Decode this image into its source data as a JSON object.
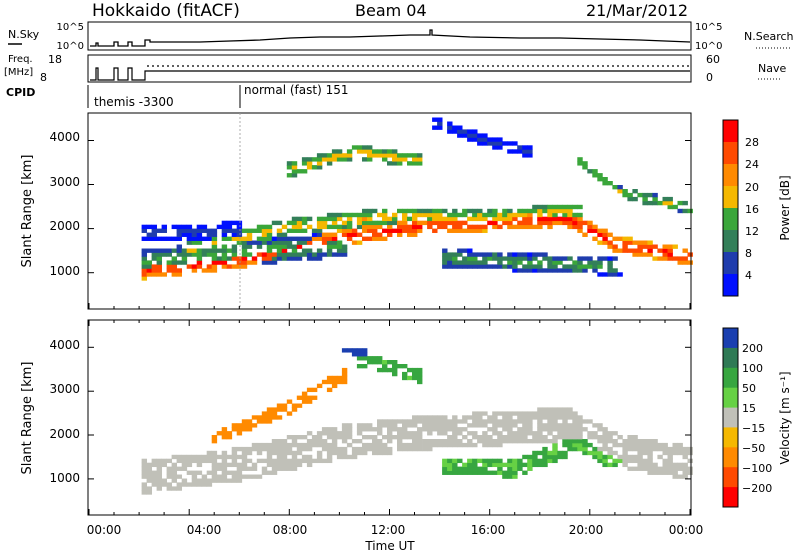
{
  "header": {
    "station": "Hokkaido (fitACF)",
    "beam": "Beam 04",
    "date": "21/Mar/2012"
  },
  "top_panels": {
    "nsky_label": "N.Sky",
    "nsky_ticks": [
      "10^5",
      "10^0"
    ],
    "nsearch_label": "N.Search",
    "nsearch_ticks": [
      "10^5",
      "10^0"
    ],
    "freq_label_1": "Freq.",
    "freq_label_2": "[MHz]",
    "freq_ticks": [
      "18",
      "8"
    ],
    "nave_label": "Nave",
    "nave_ticks": [
      "60",
      "0"
    ],
    "cpid_label": "CPID",
    "cpid_segments": [
      {
        "name": "themis -3300",
        "start_hour": 0.0,
        "end_hour": 6.0
      },
      {
        "name": "normal (fast) 151",
        "start_hour": 6.0,
        "end_hour": 24.0
      }
    ]
  },
  "power_colorbar": {
    "label": "Power [dB]",
    "ticks": [
      "28",
      "24",
      "20",
      "16",
      "12",
      "8",
      "4"
    ],
    "colors": [
      "#ff0000",
      "#ff4a00",
      "#ff8a00",
      "#f5b800",
      "#3aa63a",
      "#337f59",
      "#1f3cad",
      "#0010ff"
    ]
  },
  "velocity_colorbar": {
    "label": "Velocity [m s⁻¹]",
    "ticks": [
      "200",
      "100",
      "50",
      "15",
      "−15",
      "−50",
      "−100",
      "−200"
    ],
    "colors": [
      "#1a3fb0",
      "#2f7a55",
      "#37a640",
      "#66d144",
      "#c0c0b8",
      "#f5b800",
      "#ff8a00",
      "#ff4a00",
      "#ff0000"
    ]
  },
  "chart_data": [
    {
      "type": "heatmap",
      "name": "power",
      "ylabel": "Slant Range [km]",
      "yticks": [
        "1000",
        "2000",
        "3000",
        "4000"
      ],
      "ylim": [
        200,
        4600
      ],
      "xlim": [
        0,
        24
      ],
      "bands": [
        {
          "x": [
            2.1,
            6,
            10,
            13,
            16,
            19,
            21,
            24
          ],
          "y": [
            1000,
            1250,
            1750,
            2000,
            2100,
            2200,
            1600,
            1300
          ],
          "halfwidth": 180,
          "value": 28
        },
        {
          "x": [
            4,
            8,
            12,
            16,
            19.5
          ],
          "y": [
            1500,
            2000,
            2250,
            2200,
            2350
          ],
          "halfwidth": 180,
          "value": 18
        },
        {
          "x": [
            2.1,
            6,
            10
          ],
          "y": [
            1200,
            1400,
            1600
          ],
          "halfwidth": 280,
          "value": 13
        },
        {
          "x": [
            2.1,
            6
          ],
          "y": [
            1850,
            1900
          ],
          "halfwidth": 200,
          "value": 6
        },
        {
          "x": [
            14,
            17,
            21
          ],
          "y": [
            1300,
            1200,
            1100
          ],
          "halfwidth": 200,
          "value": 12
        },
        {
          "x": [
            8,
            10.5,
            13
          ],
          "y": [
            3300,
            3700,
            3500
          ],
          "halfwidth": 150,
          "value": 18
        },
        {
          "x": [
            13.5,
            16,
            17.5
          ],
          "y": [
            4400,
            3900,
            3700
          ],
          "halfwidth": 120,
          "value": 6
        },
        {
          "x": [
            19.5,
            21,
            24
          ],
          "y": [
            3500,
            2800,
            2400
          ],
          "halfwidth": 120,
          "value": 16
        }
      ]
    },
    {
      "type": "heatmap",
      "name": "velocity",
      "ylabel": "Slant Range [km]",
      "xlabel": "Time UT",
      "xticks": [
        "00:00",
        "04:00",
        "08:00",
        "12:00",
        "16:00",
        "20:00",
        "00:00"
      ],
      "yticks": [
        "1000",
        "2000",
        "3000",
        "4000"
      ],
      "ylim": [
        200,
        4600
      ],
      "xlim": [
        0,
        24
      ],
      "bands": [
        {
          "x": [
            2.1,
            6,
            10,
            13,
            16,
            19,
            21,
            24
          ],
          "y": [
            1000,
            1300,
            1800,
            2000,
            2100,
            2200,
            1600,
            1300
          ],
          "halfwidth": 380,
          "value": 0
        },
        {
          "x": [
            14,
            17,
            19.5,
            21
          ],
          "y": [
            1250,
            1200,
            1800,
            1300
          ],
          "halfwidth": 200,
          "value": 40
        },
        {
          "x": [
            10.5,
            12,
            13
          ],
          "y": [
            3700,
            3500,
            3300
          ],
          "halfwidth": 150,
          "value": 45
        },
        {
          "x": [
            10,
            11
          ],
          "y": [
            3900,
            3800
          ],
          "halfwidth": 80,
          "value": 180
        },
        {
          "x": [
            5,
            8,
            10
          ],
          "y": [
            1900,
            2600,
            3300
          ],
          "halfwidth": 150,
          "value": -60
        }
      ]
    }
  ]
}
